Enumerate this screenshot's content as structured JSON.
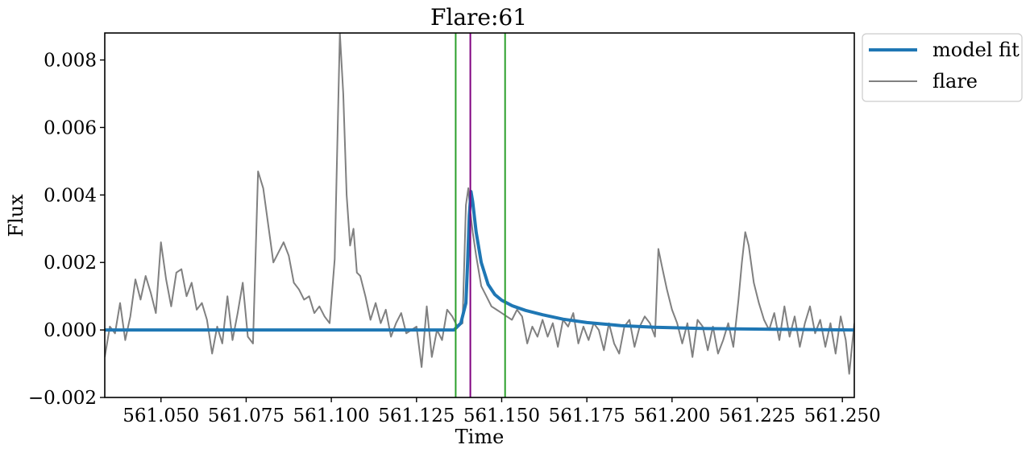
{
  "chart_data": {
    "type": "line",
    "title": "Flare:61",
    "xlabel": "Time",
    "ylabel": "Flux",
    "xlim": [
      561.0335,
      561.2535
    ],
    "ylim": [
      -0.002,
      0.0088
    ],
    "x_ticks": [
      561.05,
      561.075,
      561.1,
      561.125,
      561.15,
      561.175,
      561.2,
      561.225,
      561.25
    ],
    "x_tick_labels": [
      "561.050",
      "561.075",
      "561.100",
      "561.125",
      "561.150",
      "561.175",
      "561.200",
      "561.225",
      "561.250"
    ],
    "y_ticks": [
      -0.002,
      0.0,
      0.002,
      0.004,
      0.006,
      0.008
    ],
    "y_tick_labels": [
      "−0.002",
      "0.000",
      "0.002",
      "0.004",
      "0.006",
      "0.008"
    ],
    "grid": false,
    "legend_placement": "outside-top-right",
    "vertical_lines": [
      {
        "x": 561.1365,
        "color": "#2ca02c"
      },
      {
        "x": 561.1408,
        "color": "#800080"
      },
      {
        "x": 561.151,
        "color": "#2ca02c"
      }
    ],
    "series": [
      {
        "name": "model fit",
        "color": "#1f77b4",
        "x": [
          561.0335,
          561.136,
          561.138,
          561.1395,
          561.14,
          561.1405,
          561.141,
          561.1415,
          561.1425,
          561.144,
          561.146,
          561.148,
          561.15,
          561.153,
          561.157,
          561.162,
          561.168,
          561.175,
          561.185,
          561.195,
          561.21,
          561.23,
          561.2535
        ],
        "y": [
          0.0,
          0.0,
          0.0002,
          0.0008,
          0.002,
          0.0034,
          0.0041,
          0.0038,
          0.0029,
          0.002,
          0.00135,
          0.00105,
          0.00088,
          0.00072,
          0.00058,
          0.00045,
          0.00032,
          0.00022,
          0.00013,
          8e-05,
          4e-05,
          2e-05,
          0.0
        ]
      },
      {
        "name": "flare",
        "color": "#808080",
        "x": [
          561.0335,
          561.035,
          561.0365,
          561.038,
          561.0395,
          561.041,
          561.0425,
          561.044,
          561.0455,
          561.047,
          561.0485,
          561.05,
          561.0515,
          561.053,
          561.0545,
          561.056,
          561.0575,
          561.059,
          561.0605,
          561.062,
          561.0635,
          561.065,
          561.0665,
          561.068,
          561.0695,
          561.071,
          561.0725,
          561.074,
          561.0755,
          561.077,
          561.0785,
          561.08,
          561.0815,
          561.083,
          561.0845,
          561.086,
          561.0875,
          561.089,
          561.0905,
          561.092,
          561.0935,
          561.095,
          561.0965,
          561.098,
          561.0995,
          561.101,
          561.1025,
          561.1035,
          561.1045,
          561.1055,
          561.1065,
          561.1075,
          561.1085,
          561.11,
          561.1115,
          561.113,
          561.1145,
          561.116,
          561.1175,
          561.119,
          561.1205,
          561.122,
          561.1235,
          561.125,
          561.1265,
          561.128,
          561.1295,
          561.131,
          561.1325,
          561.134,
          561.1355,
          561.137,
          561.1385,
          561.1395,
          561.1402,
          561.1408,
          561.1415,
          561.1425,
          561.144,
          561.1455,
          561.147,
          561.1485,
          561.15,
          561.1515,
          561.153,
          561.1545,
          561.156,
          561.1575,
          561.159,
          561.1605,
          561.162,
          561.1635,
          561.165,
          561.1665,
          561.168,
          561.1695,
          561.171,
          561.1725,
          561.174,
          561.1755,
          561.177,
          561.1785,
          561.18,
          561.1815,
          561.183,
          561.1845,
          561.186,
          561.1875,
          561.189,
          561.1905,
          561.192,
          561.1935,
          561.195,
          561.196,
          561.197,
          561.1985,
          561.2,
          561.2015,
          561.203,
          561.2045,
          561.206,
          561.2075,
          561.209,
          561.2105,
          561.212,
          561.2135,
          561.215,
          561.2165,
          561.218,
          561.2195,
          561.2205,
          561.2215,
          561.2225,
          561.224,
          561.2255,
          561.227,
          561.2285,
          561.23,
          561.2315,
          561.233,
          561.2345,
          561.236,
          561.2375,
          561.239,
          561.2405,
          561.242,
          561.2435,
          561.245,
          561.2465,
          561.248,
          561.2495,
          561.251,
          561.252,
          561.2535
        ],
        "y": [
          -0.0008,
          0.0001,
          -0.0001,
          0.0008,
          -0.0003,
          0.0004,
          0.0015,
          0.0009,
          0.0016,
          0.0011,
          0.0005,
          0.0026,
          0.0015,
          0.0007,
          0.0017,
          0.0018,
          0.001,
          0.0014,
          0.0006,
          0.0008,
          0.0003,
          -0.0007,
          0.0001,
          -0.0004,
          0.001,
          -0.0003,
          0.0005,
          0.0014,
          -0.0002,
          -0.0004,
          0.0047,
          0.0042,
          0.0031,
          0.002,
          0.0023,
          0.0026,
          0.0022,
          0.0014,
          0.0012,
          0.0009,
          0.001,
          0.0005,
          0.0007,
          0.0004,
          0.0002,
          0.0021,
          0.0088,
          0.007,
          0.004,
          0.0025,
          0.003,
          0.0017,
          0.0016,
          0.001,
          0.0003,
          0.0008,
          0.0002,
          0.0006,
          -0.0002,
          0.0002,
          0.0005,
          -0.0001,
          0.0,
          0.0001,
          -0.0011,
          0.0007,
          -0.0008,
          0.0,
          -0.0003,
          0.0006,
          0.0004,
          0.0001,
          0.0002,
          0.0037,
          0.0042,
          0.0035,
          0.0029,
          0.0022,
          0.0013,
          0.001,
          0.0007,
          0.0006,
          0.0005,
          0.0004,
          0.0003,
          0.0006,
          0.0004,
          -0.0004,
          0.0001,
          -0.0002,
          0.0003,
          -0.0002,
          0.0002,
          -0.0005,
          0.0003,
          0.0001,
          0.0005,
          -0.0004,
          0.0001,
          -0.0003,
          0.0002,
          0.0,
          -0.0006,
          0.0002,
          -0.0004,
          -0.0007,
          0.0001,
          0.0003,
          -0.0005,
          0.0001,
          0.0004,
          0.0002,
          -0.0002,
          0.0024,
          0.0019,
          0.0012,
          0.0006,
          0.0002,
          -0.0004,
          0.0002,
          -0.0008,
          0.0003,
          0.0001,
          -0.0006,
          0.0001,
          -0.0007,
          -0.0003,
          0.0002,
          -0.0005,
          0.0009,
          0.002,
          0.0029,
          0.0025,
          0.0014,
          0.0008,
          0.0003,
          0.0,
          0.0005,
          -0.0003,
          0.0007,
          -0.0002,
          0.0004,
          -0.0005,
          0.0002,
          0.0007,
          -0.0001,
          0.0003,
          -0.0005,
          0.0002,
          -0.0007,
          0.0004,
          -0.0003,
          -0.0013,
          0.0002
        ]
      }
    ]
  }
}
